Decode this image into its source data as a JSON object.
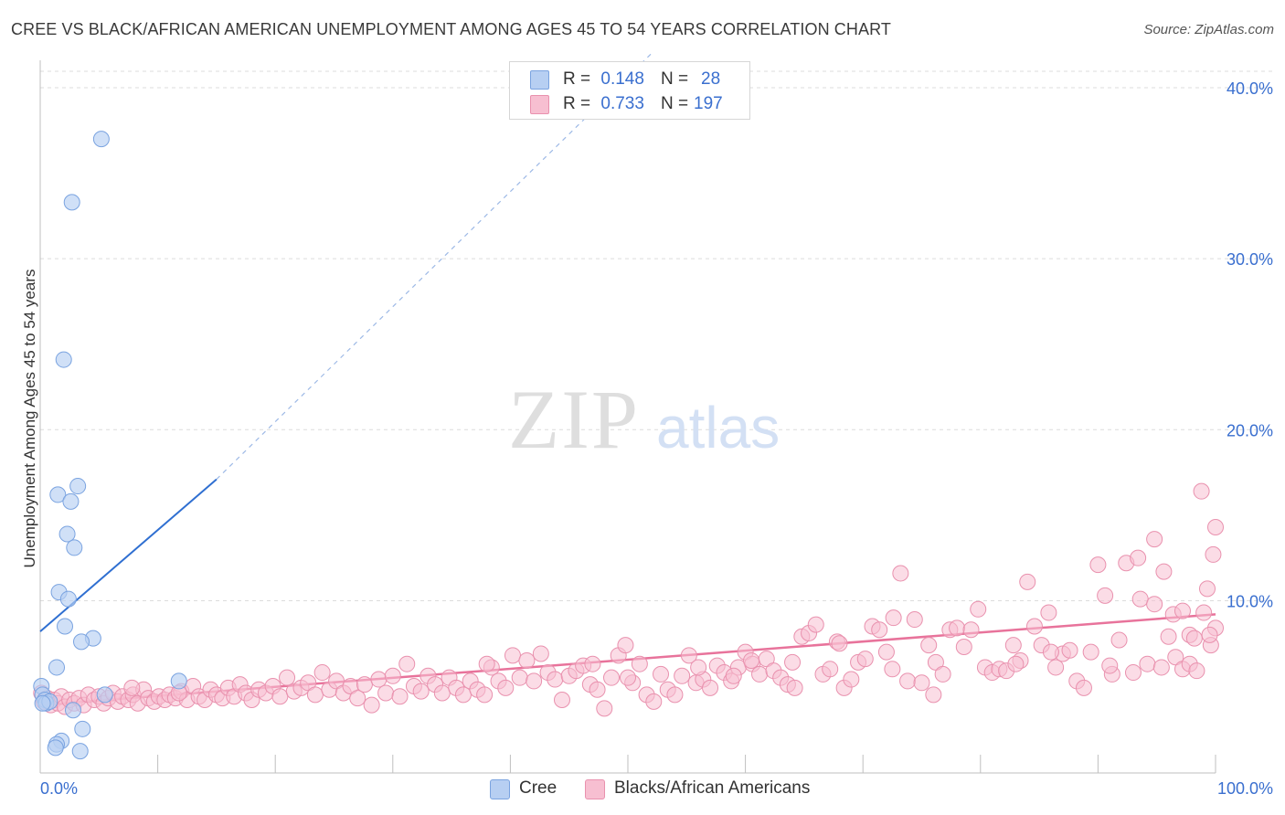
{
  "header": {
    "title": "CREE VS BLACK/AFRICAN AMERICAN UNEMPLOYMENT AMONG AGES 45 TO 54 YEARS CORRELATION CHART",
    "source": "Source: ZipAtlas.com"
  },
  "watermark": {
    "zip": "ZIP",
    "atlas": "atlas"
  },
  "stats_legend": {
    "r_label": "R =",
    "n_label": "N =",
    "rows": [
      {
        "r": "0.148",
        "n": "28"
      },
      {
        "r": "0.733",
        "n": "197"
      }
    ]
  },
  "colors": {
    "cree_fill": "#b7cff2",
    "cree_stroke": "#7aa3e0",
    "cree_line": "#2f6fd1",
    "black_fill": "#f7bfd1",
    "black_stroke": "#e991ae",
    "black_line": "#e8739b",
    "axis_text": "#3a6fcf",
    "grid": "#dcdcdc"
  },
  "chart_data": {
    "type": "scatter",
    "title": "CREE VS BLACK/AFRICAN AMERICAN UNEMPLOYMENT AMONG AGES 45 TO 54 YEARS CORRELATION CHART",
    "xlabel": "",
    "ylabel": "Unemployment Among Ages 45 to 54 years",
    "xlim": [
      0,
      100
    ],
    "ylim": [
      0,
      42
    ],
    "x_tick_labels": [
      "0.0%",
      "100.0%"
    ],
    "y_ticks": [
      10,
      20,
      30,
      40
    ],
    "y_tick_labels": [
      "10.0%",
      "20.0%",
      "30.0%",
      "40.0%"
    ],
    "grid": true,
    "legend_position": "bottom-center",
    "series": [
      {
        "name": "Cree",
        "r": 0.148,
        "n": 28,
        "trend": {
          "x0": 0,
          "y0": 8.2,
          "x1": 15,
          "y1": 17.1,
          "dashed_to_x": 52,
          "dashed_to_y": 42
        },
        "points": [
          [
            5.2,
            37.0
          ],
          [
            2.7,
            33.3
          ],
          [
            2.0,
            24.1
          ],
          [
            3.2,
            16.7
          ],
          [
            1.5,
            16.2
          ],
          [
            2.6,
            15.8
          ],
          [
            2.3,
            13.9
          ],
          [
            2.9,
            13.1
          ],
          [
            1.6,
            10.5
          ],
          [
            2.4,
            10.1
          ],
          [
            2.1,
            8.5
          ],
          [
            4.5,
            7.8
          ],
          [
            3.5,
            7.6
          ],
          [
            1.4,
            6.1
          ],
          [
            11.8,
            5.3
          ],
          [
            0.1,
            5.0
          ],
          [
            0.2,
            4.5
          ],
          [
            0.4,
            4.2
          ],
          [
            0.5,
            4.0
          ],
          [
            0.8,
            4.1
          ],
          [
            5.5,
            4.5
          ],
          [
            0.2,
            4.0
          ],
          [
            2.8,
            3.6
          ],
          [
            3.6,
            2.5
          ],
          [
            1.8,
            1.8
          ],
          [
            1.4,
            1.6
          ],
          [
            1.3,
            1.4
          ],
          [
            3.4,
            1.2
          ]
        ]
      },
      {
        "name": "Blacks/African Americans",
        "r": 0.733,
        "n": 197,
        "trend": {
          "x0": 0,
          "y0": 3.9,
          "x1": 100,
          "y1": 9.2
        },
        "points": [
          [
            0.1,
            4.6
          ],
          [
            0.3,
            4.1
          ],
          [
            0.6,
            4.3
          ],
          [
            0.9,
            3.9
          ],
          [
            1.2,
            4.2
          ],
          [
            1.5,
            4.0
          ],
          [
            1.8,
            4.4
          ],
          [
            2.1,
            3.8
          ],
          [
            2.5,
            4.2
          ],
          [
            2.9,
            4.0
          ],
          [
            3.3,
            4.3
          ],
          [
            3.7,
            3.9
          ],
          [
            4.1,
            4.5
          ],
          [
            4.6,
            4.2
          ],
          [
            5.0,
            4.4
          ],
          [
            5.4,
            4.0
          ],
          [
            5.8,
            4.3
          ],
          [
            6.2,
            4.6
          ],
          [
            6.6,
            4.1
          ],
          [
            7.0,
            4.4
          ],
          [
            7.5,
            4.2
          ],
          [
            7.9,
            4.5
          ],
          [
            8.3,
            4.0
          ],
          [
            8.8,
            4.8
          ],
          [
            9.2,
            4.3
          ],
          [
            9.7,
            4.1
          ],
          [
            10.1,
            4.4
          ],
          [
            10.6,
            4.2
          ],
          [
            11.0,
            4.5
          ],
          [
            11.5,
            4.3
          ],
          [
            12.0,
            4.7
          ],
          [
            12.5,
            4.2
          ],
          [
            13.0,
            5.0
          ],
          [
            13.5,
            4.4
          ],
          [
            14.0,
            4.2
          ],
          [
            14.5,
            4.8
          ],
          [
            15.0,
            4.5
          ],
          [
            15.5,
            4.3
          ],
          [
            16.0,
            4.9
          ],
          [
            16.5,
            4.4
          ],
          [
            17.0,
            5.1
          ],
          [
            17.5,
            4.6
          ],
          [
            18.0,
            4.2
          ],
          [
            18.6,
            4.8
          ],
          [
            19.2,
            4.6
          ],
          [
            19.8,
            5.0
          ],
          [
            20.4,
            4.4
          ],
          [
            21.0,
            5.5
          ],
          [
            21.6,
            4.7
          ],
          [
            22.2,
            4.9
          ],
          [
            22.8,
            5.2
          ],
          [
            23.4,
            4.5
          ],
          [
            24.0,
            5.8
          ],
          [
            24.6,
            4.8
          ],
          [
            25.2,
            5.3
          ],
          [
            25.8,
            4.6
          ],
          [
            26.4,
            5.0
          ],
          [
            27.0,
            4.3
          ],
          [
            27.6,
            5.1
          ],
          [
            28.2,
            3.9
          ],
          [
            28.8,
            5.4
          ],
          [
            29.4,
            4.6
          ],
          [
            30.0,
            5.6
          ],
          [
            30.6,
            4.4
          ],
          [
            31.2,
            6.3
          ],
          [
            31.8,
            5.0
          ],
          [
            32.4,
            4.7
          ],
          [
            33.0,
            5.6
          ],
          [
            33.6,
            5.1
          ],
          [
            34.2,
            4.6
          ],
          [
            34.8,
            5.5
          ],
          [
            35.4,
            4.9
          ],
          [
            36.0,
            4.5
          ],
          [
            36.6,
            5.3
          ],
          [
            37.2,
            4.8
          ],
          [
            37.8,
            4.5
          ],
          [
            38.4,
            6.1
          ],
          [
            39.0,
            5.3
          ],
          [
            39.6,
            4.9
          ],
          [
            40.2,
            6.8
          ],
          [
            40.8,
            5.5
          ],
          [
            41.4,
            6.5
          ],
          [
            42.0,
            5.3
          ],
          [
            42.6,
            6.9
          ],
          [
            43.2,
            5.8
          ],
          [
            43.8,
            5.4
          ],
          [
            44.4,
            4.2
          ],
          [
            45.0,
            5.6
          ],
          [
            45.6,
            5.9
          ],
          [
            46.2,
            6.2
          ],
          [
            46.8,
            5.1
          ],
          [
            47.4,
            4.8
          ],
          [
            48.0,
            3.7
          ],
          [
            48.6,
            5.5
          ],
          [
            49.2,
            6.8
          ],
          [
            49.8,
            7.4
          ],
          [
            50.4,
            5.2
          ],
          [
            51.0,
            6.3
          ],
          [
            51.6,
            4.5
          ],
          [
            52.2,
            4.1
          ],
          [
            52.8,
            5.7
          ],
          [
            53.4,
            4.8
          ],
          [
            54.0,
            4.5
          ],
          [
            54.6,
            5.6
          ],
          [
            55.2,
            6.8
          ],
          [
            55.8,
            5.2
          ],
          [
            56.4,
            5.4
          ],
          [
            57.0,
            4.9
          ],
          [
            57.6,
            6.2
          ],
          [
            58.2,
            5.8
          ],
          [
            58.8,
            5.3
          ],
          [
            59.4,
            6.1
          ],
          [
            60.0,
            7.0
          ],
          [
            60.6,
            6.3
          ],
          [
            61.2,
            5.7
          ],
          [
            61.8,
            6.6
          ],
          [
            62.4,
            5.9
          ],
          [
            63.0,
            5.5
          ],
          [
            63.6,
            5.1
          ],
          [
            64.2,
            4.9
          ],
          [
            64.8,
            7.9
          ],
          [
            65.4,
            8.1
          ],
          [
            66.0,
            8.6
          ],
          [
            66.6,
            5.7
          ],
          [
            67.2,
            6.0
          ],
          [
            67.8,
            7.6
          ],
          [
            68.4,
            4.9
          ],
          [
            69.0,
            5.4
          ],
          [
            69.6,
            6.4
          ],
          [
            70.2,
            6.6
          ],
          [
            70.8,
            8.5
          ],
          [
            71.4,
            8.3
          ],
          [
            72.0,
            7.0
          ],
          [
            72.6,
            9.0
          ],
          [
            73.2,
            11.6
          ],
          [
            73.8,
            5.3
          ],
          [
            74.4,
            8.9
          ],
          [
            75.0,
            5.2
          ],
          [
            75.6,
            7.4
          ],
          [
            76.2,
            6.4
          ],
          [
            76.8,
            5.7
          ],
          [
            77.4,
            8.3
          ],
          [
            78.0,
            8.4
          ],
          [
            78.6,
            7.3
          ],
          [
            79.2,
            8.3
          ],
          [
            79.8,
            9.5
          ],
          [
            80.4,
            6.1
          ],
          [
            81.0,
            5.8
          ],
          [
            81.6,
            6.0
          ],
          [
            82.2,
            5.9
          ],
          [
            82.8,
            7.4
          ],
          [
            83.4,
            6.5
          ],
          [
            84.0,
            11.1
          ],
          [
            84.6,
            8.5
          ],
          [
            85.2,
            7.4
          ],
          [
            85.8,
            9.3
          ],
          [
            86.4,
            6.1
          ],
          [
            87.0,
            6.9
          ],
          [
            87.6,
            7.1
          ],
          [
            88.2,
            5.3
          ],
          [
            88.8,
            4.9
          ],
          [
            89.4,
            7.0
          ],
          [
            90.0,
            12.1
          ],
          [
            90.6,
            10.3
          ],
          [
            91.2,
            5.7
          ],
          [
            91.8,
            7.7
          ],
          [
            92.4,
            12.2
          ],
          [
            93.0,
            5.8
          ],
          [
            93.6,
            10.1
          ],
          [
            94.2,
            6.3
          ],
          [
            94.8,
            9.8
          ],
          [
            95.4,
            6.1
          ],
          [
            96.0,
            7.9
          ],
          [
            96.6,
            6.7
          ],
          [
            97.2,
            6.0
          ],
          [
            97.8,
            6.3
          ],
          [
            98.4,
            5.9
          ],
          [
            99.0,
            9.3
          ],
          [
            99.6,
            7.4
          ],
          [
            100.0,
            8.4
          ],
          [
            93.4,
            12.5
          ],
          [
            94.8,
            13.6
          ],
          [
            95.6,
            11.7
          ],
          [
            96.4,
            9.2
          ],
          [
            97.2,
            9.4
          ],
          [
            97.8,
            8.0
          ],
          [
            98.2,
            7.8
          ],
          [
            98.8,
            16.4
          ],
          [
            99.3,
            10.7
          ],
          [
            99.8,
            12.7
          ],
          [
            100.0,
            14.3
          ],
          [
            99.5,
            8.0
          ],
          [
            38.0,
            6.3
          ],
          [
            47.0,
            6.3
          ],
          [
            56.0,
            6.1
          ],
          [
            60.5,
            6.5
          ],
          [
            64.0,
            6.4
          ],
          [
            68.0,
            7.5
          ],
          [
            72.5,
            6.0
          ],
          [
            76.0,
            4.5
          ],
          [
            91.0,
            6.2
          ],
          [
            83.0,
            6.3
          ],
          [
            86.0,
            7.0
          ],
          [
            59.0,
            5.6
          ],
          [
            50.0,
            5.5
          ],
          [
            11.8,
            4.6
          ],
          [
            7.8,
            4.9
          ]
        ]
      }
    ]
  },
  "bottom_legend": [
    {
      "label": "Cree"
    },
    {
      "label": "Blacks/African Americans"
    }
  ]
}
